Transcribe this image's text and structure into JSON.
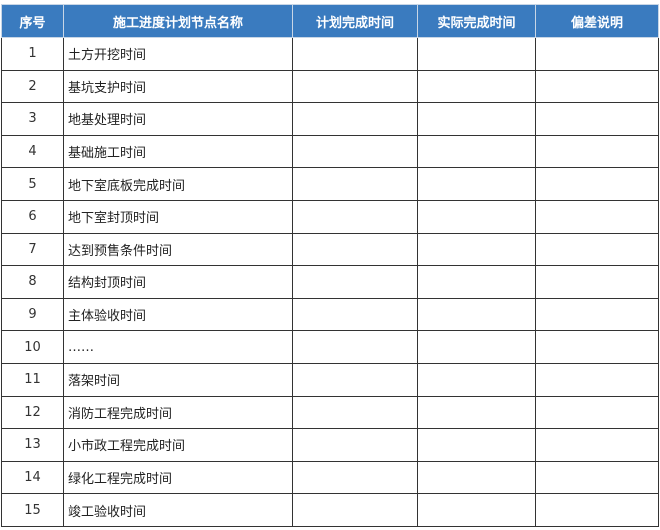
{
  "table": {
    "headers": [
      "序号",
      "施工进度计划节点名称",
      "计划完成时间",
      "实际完成时间",
      "偏差说明"
    ],
    "rows": [
      {
        "no": "1",
        "name": "土方开挖时间",
        "plan": "",
        "actual": "",
        "note": ""
      },
      {
        "no": "2",
        "name": "基坑支护时间",
        "plan": "",
        "actual": "",
        "note": ""
      },
      {
        "no": "3",
        "name": "地基处理时间",
        "plan": "",
        "actual": "",
        "note": ""
      },
      {
        "no": "4",
        "name": "基础施工时间",
        "plan": "",
        "actual": "",
        "note": ""
      },
      {
        "no": "5",
        "name": "地下室底板完成时间",
        "plan": "",
        "actual": "",
        "note": ""
      },
      {
        "no": "6",
        "name": "地下室封顶时间",
        "plan": "",
        "actual": "",
        "note": ""
      },
      {
        "no": "7",
        "name": "达到预售条件时间",
        "plan": "",
        "actual": "",
        "note": ""
      },
      {
        "no": "8",
        "name": "结构封顶时间",
        "plan": "",
        "actual": "",
        "note": ""
      },
      {
        "no": "9",
        "name": "主体验收时间",
        "plan": "",
        "actual": "",
        "note": ""
      },
      {
        "no": "10",
        "name": "……",
        "plan": "",
        "actual": "",
        "note": ""
      },
      {
        "no": "11",
        "name": "落架时间",
        "plan": "",
        "actual": "",
        "note": ""
      },
      {
        "no": "12",
        "name": "消防工程完成时间",
        "plan": "",
        "actual": "",
        "note": ""
      },
      {
        "no": "13",
        "name": "小市政工程完成时间",
        "plan": "",
        "actual": "",
        "note": ""
      },
      {
        "no": "14",
        "name": "绿化工程完成时间",
        "plan": "",
        "actual": "",
        "note": ""
      },
      {
        "no": "15",
        "name": "竣工验收时间",
        "plan": "",
        "actual": "",
        "note": ""
      }
    ]
  }
}
